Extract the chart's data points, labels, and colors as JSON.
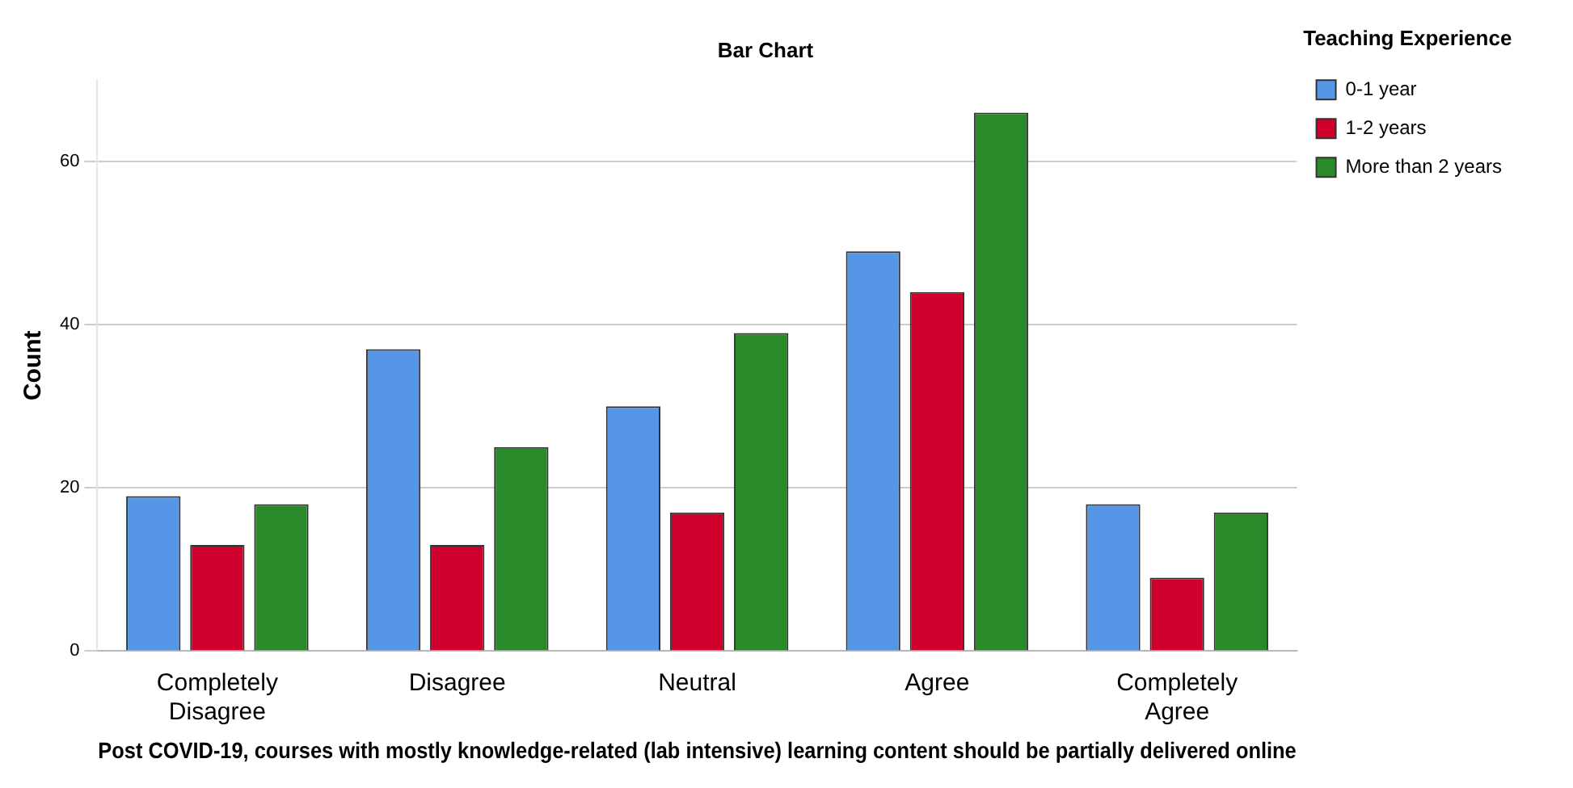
{
  "chart_data": {
    "type": "bar",
    "title": "Bar Chart",
    "xlabel": "Post COVID-19, courses with mostly knowledge-related (lab intensive) learning content should be partially delivered online",
    "ylabel": "Count",
    "legend_title": "Teaching Experience",
    "categories": [
      "Completely Disagree",
      "Disagree",
      "Neutral",
      "Agree",
      "Completely Agree"
    ],
    "series": [
      {
        "name": "0-1 year",
        "color": "#5596e6",
        "values": [
          19,
          37,
          30,
          49,
          18
        ]
      },
      {
        "name": "1-2 years",
        "color": "#d0002d",
        "values": [
          13,
          13,
          17,
          44,
          9
        ]
      },
      {
        "name": "More than 2 years",
        "color": "#2a8a2a",
        "values": [
          18,
          25,
          39,
          66,
          17
        ]
      }
    ],
    "ylim": [
      0,
      70
    ],
    "yticks": [
      0,
      20,
      40,
      60
    ],
    "grid": "y",
    "legend": "top right"
  }
}
